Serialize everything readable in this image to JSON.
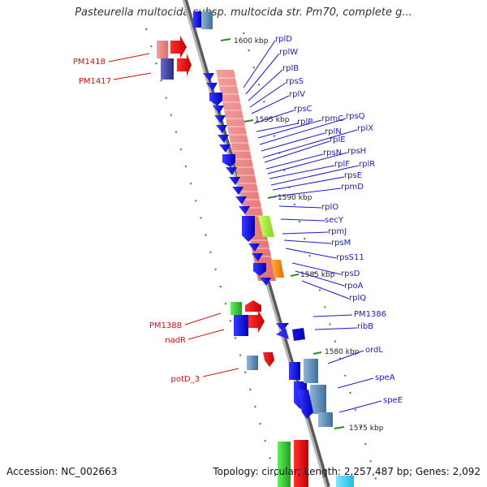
{
  "title": "Pasteurella multocida subsp. multocida str. Pm70, complete g...",
  "accession": "Accession: NC_002663",
  "summary": "Topology: circular; Length: 2,257,487 bp; Genes: 2,092",
  "colors": {
    "label_blue": "#1a1acc",
    "label_red": "#cc1111",
    "backbone": "#8c8c8c",
    "tick": "#2a8a2a"
  },
  "kbp_labels": [
    "1600 kbp",
    "1595 kbp",
    "1590 kbp",
    "1585 kbp",
    "1580 kbp",
    "1575 kbp"
  ],
  "right_genes": [
    "rplD",
    "rplW",
    "rplB",
    "rpsS",
    "rplV",
    "rpsC",
    "rplP",
    "rpmC",
    "rpsQ",
    "rplN",
    "rplX",
    "rplE",
    "rpsN",
    "rpsH",
    "rplF",
    "rplR",
    "rpsE",
    "rpmD",
    "rplO",
    "secY",
    "rpmJ",
    "rpsM",
    "rpsS11",
    "rpsD",
    "rpoA",
    "rplQ",
    "PM1386",
    "ribB",
    "ordL",
    "speA",
    "speE"
  ],
  "left_genes": [
    "PM1418",
    "PM1417",
    "PM1388",
    "nadR",
    "potD_3"
  ]
}
